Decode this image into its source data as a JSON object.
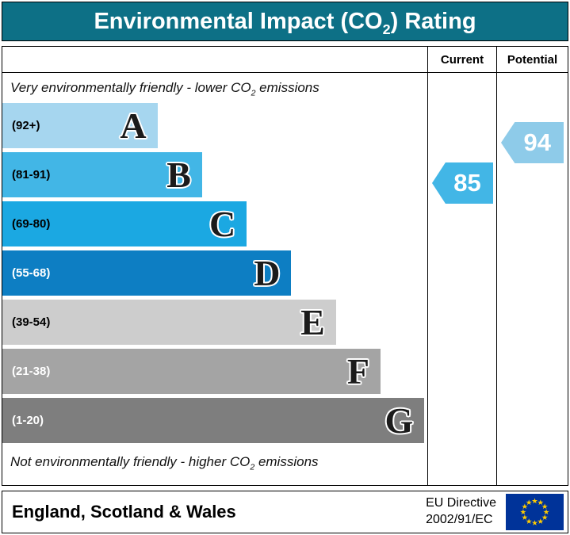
{
  "header": {
    "title_pre": "Environmental Impact (CO",
    "title_sub": "2",
    "title_post": ") Rating",
    "bg_color": "#0d7086"
  },
  "columns": {
    "current": "Current",
    "potential": "Potential"
  },
  "notes": {
    "top_pre": "Very environmentally friendly - lower CO",
    "top_sub": "2",
    "top_post": " emissions",
    "bottom_pre": "Not environmentally friendly - higher CO",
    "bottom_sub": "2",
    "bottom_post": " emissions"
  },
  "bands": [
    {
      "letter": "A",
      "range": "(92+)",
      "color": "#a6d6ef",
      "width_pct": 36.5,
      "range_text_color": "#000000"
    },
    {
      "letter": "B",
      "range": "(81-91)",
      "color": "#42b6e6",
      "width_pct": 47.0,
      "range_text_color": "#000000"
    },
    {
      "letter": "C",
      "range": "(69-80)",
      "color": "#1ba8e2",
      "width_pct": 57.5,
      "range_text_color": "#000000"
    },
    {
      "letter": "D",
      "range": "(55-68)",
      "color": "#0d7ec3",
      "width_pct": 68.0,
      "range_text_color": "#ffffff"
    },
    {
      "letter": "E",
      "range": "(39-54)",
      "color": "#cdcdcd",
      "width_pct": 78.5,
      "range_text_color": "#000000"
    },
    {
      "letter": "F",
      "range": "(21-38)",
      "color": "#a4a4a4",
      "width_pct": 89.0,
      "range_text_color": "#ffffff"
    },
    {
      "letter": "G",
      "range": "(1-20)",
      "color": "#7e7e7e",
      "width_pct": 99.3,
      "range_text_color": "#ffffff"
    }
  ],
  "current": {
    "value": "85",
    "color": "#42b6e6",
    "band": "B"
  },
  "potential": {
    "value": "94",
    "color": "#8ecbe9",
    "band": "A"
  },
  "footer": {
    "region": "England, Scotland & Wales",
    "directive_line1": "EU Directive",
    "directive_line2": "2002/91/EC",
    "flag_color": "#003399",
    "star_color": "#ffcc00"
  },
  "chart_data": {
    "type": "bar",
    "title": "Environmental Impact (CO2) Rating",
    "categories": [
      "A",
      "B",
      "C",
      "D",
      "E",
      "F",
      "G"
    ],
    "band_ranges": [
      "92+",
      "81-91",
      "69-80",
      "55-68",
      "39-54",
      "21-38",
      "1-20"
    ],
    "bar_lengths_pct": [
      36.5,
      47.0,
      57.5,
      68.0,
      78.5,
      89.0,
      99.3
    ],
    "current_rating": 85,
    "current_band": "B",
    "potential_rating": 94,
    "potential_band": "A",
    "top_annotation": "Very environmentally friendly - lower CO2 emissions",
    "bottom_annotation": "Not environmentally friendly - higher CO2 emissions",
    "region": "England, Scotland & Wales",
    "directive": "EU Directive 2002/91/EC",
    "legend_position": "none",
    "grid": false
  }
}
